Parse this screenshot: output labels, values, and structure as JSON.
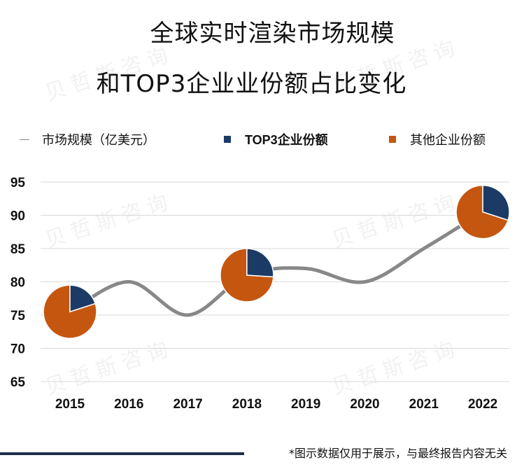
{
  "title_line1": "全球实时渲染市场规模",
  "title_line2": "和TOP3企业业份额占比变化",
  "legend": {
    "line": "市场规模（亿美元）",
    "top3": "TOP3企业份额",
    "other": "其他企业份额"
  },
  "footer_note": "*图示数据仅用于展示，与最终报告内容无关",
  "watermark": "贝哲斯咨询",
  "colors": {
    "line": "#888888",
    "top3": "#1b3a66",
    "other": "#c5560f",
    "gridline": "#d9d9d9",
    "footer_bar": "#1f2f4a"
  },
  "chart_data": {
    "type": "line",
    "title": "全球实时渲染市场规模和TOP3企业业份额占比变化",
    "categories": [
      "2015",
      "2016",
      "2017",
      "2018",
      "2019",
      "2020",
      "2021",
      "2022"
    ],
    "series": [
      {
        "name": "市场规模（亿美元）",
        "values": [
          75.5,
          80,
          75,
          81,
          82,
          80,
          85,
          90.5
        ]
      }
    ],
    "ylim": [
      65,
      95
    ],
    "yticks": [
      65,
      70,
      75,
      80,
      85,
      90,
      95
    ],
    "grid": true,
    "pies": [
      {
        "category": "2015",
        "top3_share": 0.2,
        "other_share": 0.8
      },
      {
        "category": "2018",
        "top3_share": 0.26,
        "other_share": 0.74
      },
      {
        "category": "2022",
        "top3_share": 0.3,
        "other_share": 0.7
      }
    ],
    "legend_position": "top"
  }
}
